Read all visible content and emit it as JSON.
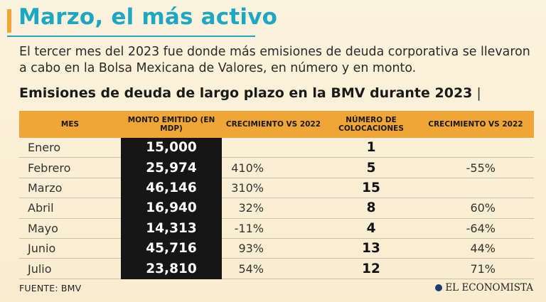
{
  "header": {
    "headline": "Marzo, el más activo",
    "intro": "El tercer mes del 2023 fue donde más emisiones de deuda corporativa se llevaron a cabo en la Bolsa Mexicana de Valores, en número y en monto."
  },
  "table": {
    "title": "Emisiones de deuda de largo plazo en la BMV durante 2023",
    "title_separator": "|",
    "columns": [
      "MES",
      "MONTO EMITIDO (EN MDP)",
      "CRECIMIENTO VS 2022",
      "NÚMERO DE COLOCACIONES",
      "CRECIMIENTO VS 2022"
    ],
    "rows": [
      {
        "mes": "Enero",
        "monto": "15,000",
        "crec_monto": "",
        "num": "1",
        "crec_num": ""
      },
      {
        "mes": "Febrero",
        "monto": "25,974",
        "crec_monto": "410%",
        "num": "5",
        "crec_num": "-55%"
      },
      {
        "mes": "Marzo",
        "monto": "46,146",
        "crec_monto": "310%",
        "num": "15",
        "crec_num": ""
      },
      {
        "mes": "Abril",
        "monto": "16,940",
        "crec_monto": "32%",
        "num": "8",
        "crec_num": "60%"
      },
      {
        "mes": "Mayo",
        "monto": "14,313",
        "crec_monto": "-11%",
        "num": "4",
        "crec_num": "-64%"
      },
      {
        "mes": "Junio",
        "monto": "45,716",
        "crec_monto": "93%",
        "num": "13",
        "crec_num": "44%"
      },
      {
        "mes": "Julio",
        "monto": "23,810",
        "crec_monto": "54%",
        "num": "12",
        "crec_num": "71%"
      }
    ]
  },
  "footer": {
    "source": "FUENTE: BMV",
    "brand": "EL ECONOMISTA",
    "brand_icon": "globe-icon"
  },
  "colors": {
    "accent": "#f0a637",
    "headline": "#1ea7c5",
    "background": "#fbf0d8",
    "monto_cell": "#161616"
  }
}
